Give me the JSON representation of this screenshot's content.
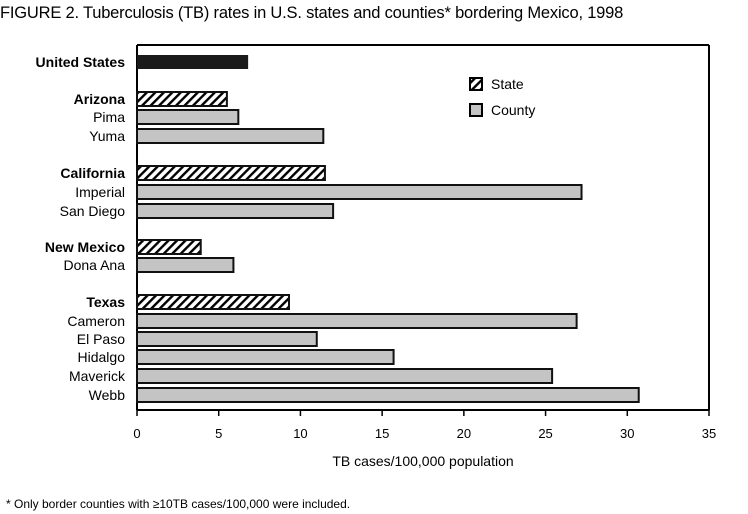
{
  "title": "FIGURE 2. Tuberculosis (TB) rates in U.S. states and counties* bordering Mexico, 1998",
  "footnote": "*   Only border counties with ≥10TB cases/100,000 were included.",
  "chart_data": {
    "type": "bar",
    "orientation": "horizontal",
    "xlabel": "TB cases/100,000 population",
    "xlim": [
      0,
      35
    ],
    "xticks": [
      0,
      5,
      10,
      15,
      20,
      25,
      30,
      35
    ],
    "grid": false,
    "legend": {
      "placement": "top-right",
      "entries": [
        {
          "name": "State",
          "style": "hatched"
        },
        {
          "name": "County",
          "style": "gray"
        }
      ]
    },
    "colors": {
      "national": "#1a1a1a",
      "county": "#c4c4c4",
      "state": "hatched black/white"
    },
    "categories": [
      {
        "label": "United States",
        "type": "national",
        "value": 6.8
      },
      {
        "label": "Arizona",
        "type": "state",
        "value": 5.5
      },
      {
        "label": "Pima",
        "type": "county",
        "value": 6.2
      },
      {
        "label": "Yuma",
        "type": "county",
        "value": 11.4
      },
      {
        "label": "California",
        "type": "state",
        "value": 11.5
      },
      {
        "label": "Imperial",
        "type": "county",
        "value": 27.2
      },
      {
        "label": "San Diego",
        "type": "county",
        "value": 12.0
      },
      {
        "label": "New Mexico",
        "type": "state",
        "value": 3.9
      },
      {
        "label": "Dona Ana",
        "type": "county",
        "value": 5.9
      },
      {
        "label": "Texas",
        "type": "state",
        "value": 9.3
      },
      {
        "label": "Cameron",
        "type": "county",
        "value": 26.9
      },
      {
        "label": "El Paso",
        "type": "county",
        "value": 11.0
      },
      {
        "label": "Hidalgo",
        "type": "county",
        "value": 15.7
      },
      {
        "label": "Maverick",
        "type": "county",
        "value": 25.4
      },
      {
        "label": "Webb",
        "type": "county",
        "value": 30.7
      }
    ]
  }
}
